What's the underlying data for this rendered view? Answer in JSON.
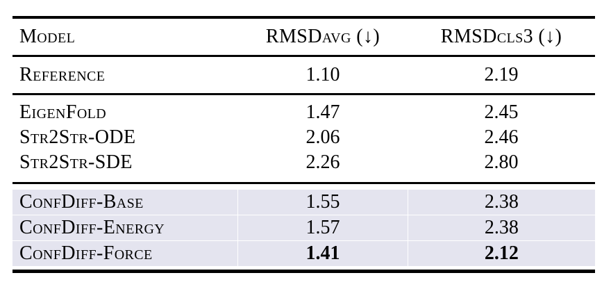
{
  "table": {
    "columns": [
      {
        "label": "Model"
      },
      {
        "label": "RMSDavg (↓)"
      },
      {
        "label": "RMSDcls3 (↓)"
      }
    ],
    "sections": [
      {
        "name": "reference",
        "highlighted": false,
        "rows": [
          {
            "model": "Reference",
            "rmsd_avg": "1.10",
            "rmsd_cls3": "2.19"
          }
        ]
      },
      {
        "name": "baselines",
        "highlighted": false,
        "rows": [
          {
            "model": "EigenFold",
            "rmsd_avg": "1.47",
            "rmsd_cls3": "2.45"
          },
          {
            "model": "Str2Str-ODE",
            "rmsd_avg": "2.06",
            "rmsd_cls3": "2.46"
          },
          {
            "model": "Str2Str-SDE",
            "rmsd_avg": "2.26",
            "rmsd_cls3": "2.80"
          }
        ]
      },
      {
        "name": "confdiff",
        "highlighted": true,
        "rows": [
          {
            "model": "ConfDiff-Base",
            "rmsd_avg": "1.55",
            "rmsd_cls3": "2.38"
          },
          {
            "model": "ConfDiff-Energy",
            "rmsd_avg": "1.57",
            "rmsd_cls3": "2.38"
          },
          {
            "model": "ConfDiff-Force",
            "rmsd_avg": "1.41",
            "rmsd_cls3": "2.12",
            "bold_values": true
          }
        ]
      }
    ],
    "colors": {
      "highlight_background": "#e4e4ef",
      "rule_color": "#000000"
    }
  }
}
